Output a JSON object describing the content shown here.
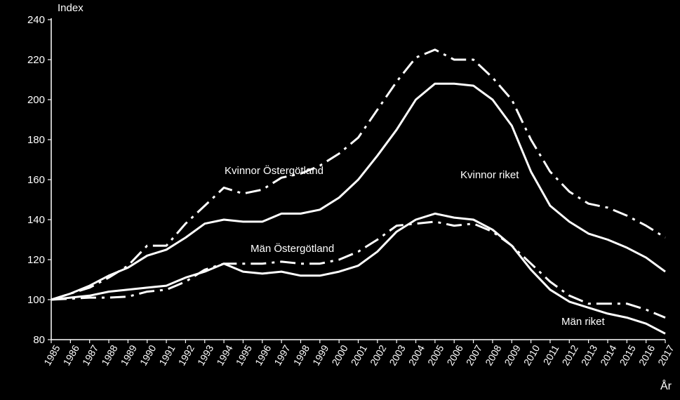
{
  "chart_data": {
    "type": "line",
    "title": "",
    "ylabel": "Index",
    "xlabel": "År",
    "ylim": [
      80,
      240
    ],
    "yticks": [
      80,
      100,
      120,
      140,
      160,
      180,
      200,
      220,
      240
    ],
    "categories": [
      "1985",
      "1986",
      "1987",
      "1988",
      "1989",
      "1990",
      "1991",
      "1992",
      "1993",
      "1994",
      "1995",
      "1996",
      "1997",
      "1998",
      "1999",
      "2000",
      "2001",
      "2002",
      "2003",
      "2004",
      "2005",
      "2006",
      "2007",
      "2008",
      "2009",
      "2010",
      "2011",
      "2012",
      "2013",
      "2014",
      "2015",
      "2016",
      "2017"
    ],
    "grid": false,
    "background": "#000000",
    "line_color": "#ffffff",
    "series": [
      {
        "name": "Kvinnor Östergötland",
        "style": "dashdot",
        "values": [
          100,
          103,
          106,
          111,
          117,
          127,
          127,
          138,
          147,
          156,
          153,
          155,
          161,
          163,
          167,
          173,
          181,
          195,
          209,
          221,
          225,
          220,
          220,
          211,
          200,
          180,
          164,
          154,
          148,
          146,
          142,
          137,
          131
        ]
      },
      {
        "name": "Kvinnor riket",
        "style": "solid",
        "values": [
          100,
          103,
          107,
          112,
          116,
          122,
          125,
          131,
          138,
          140,
          139,
          139,
          143,
          143,
          145,
          151,
          160,
          172,
          185,
          200,
          208,
          208,
          207,
          200,
          187,
          164,
          147,
          139,
          133,
          130,
          126,
          121,
          114
        ]
      },
      {
        "name": "Män Östergötland",
        "style": "dashdot",
        "values": [
          100,
          100.5,
          101,
          101,
          101.5,
          104,
          105,
          109,
          115,
          118,
          118,
          118,
          119,
          118,
          118,
          120,
          124,
          130,
          137,
          138,
          139,
          137,
          138,
          134,
          127,
          118,
          109,
          102,
          98,
          98,
          98,
          95,
          91
        ]
      },
      {
        "name": "Män riket",
        "style": "solid",
        "values": [
          100,
          101,
          102,
          104,
          105,
          106,
          107,
          111,
          114,
          118,
          114,
          113,
          114,
          112,
          112,
          114,
          117,
          124,
          134,
          140,
          143,
          141,
          140,
          135,
          127,
          115,
          105,
          99,
          96,
          93,
          91,
          88,
          83
        ]
      }
    ]
  }
}
